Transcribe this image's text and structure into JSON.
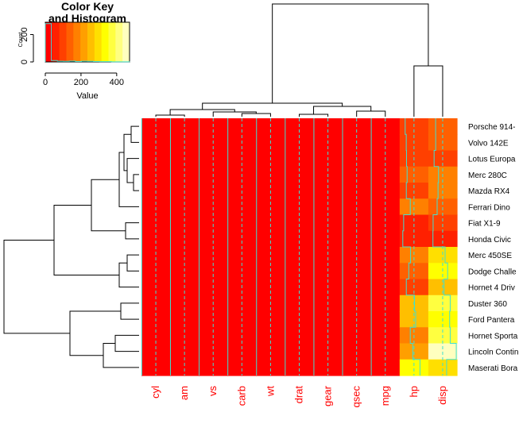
{
  "chart_data": [
    {
      "type": "heatmap",
      "columns": [
        "cyl",
        "am",
        "vs",
        "carb",
        "wt",
        "drat",
        "gear",
        "qsec",
        "mpg",
        "hp",
        "disp"
      ],
      "column_label_color": "#ff0000",
      "rows": [
        "Porsche 914-",
        "Volvo 142E",
        "Lotus Europa",
        "Merc 280C",
        "Mazda RX4",
        "Ferrari Dino",
        "Fiat X1-9",
        "Honda Civic",
        "Merc 450SE",
        "Dodge Challe",
        "Hornet 4 Driv",
        "Duster 360",
        "Ford Pantera",
        "Hornet Sporta",
        "Lincoln Contin",
        "Maserati Bora"
      ],
      "hp": [
        91,
        109,
        113,
        123,
        110,
        175,
        66,
        52,
        180,
        150,
        110,
        245,
        264,
        175,
        215,
        335
      ],
      "disp": [
        120,
        121,
        95,
        168,
        160,
        145,
        79,
        76,
        276,
        318,
        258,
        360,
        351,
        360,
        460,
        301
      ],
      "other_columns_value": 5,
      "trace_color": "#40e0d0",
      "dendrograms": [
        "row",
        "column"
      ]
    },
    {
      "type": "bar",
      "title": "Color Key\nand Histogram",
      "title_lines": [
        "Color Key",
        "and Histogram"
      ],
      "xlabel": "Value",
      "ylabel": "Count",
      "xlim": [
        0,
        472
      ],
      "xticks": [
        0,
        200,
        400
      ],
      "ylim": [
        0,
        290
      ],
      "yticks": [
        0,
        200
      ],
      "bin_counts": [
        280,
        10,
        5,
        4,
        6,
        3,
        5,
        4,
        3,
        2,
        2,
        1,
        1,
        1
      ],
      "color_scale": [
        "#ff0000",
        "#ff2000",
        "#ff4000",
        "#ff6000",
        "#ff8000",
        "#ff9f00",
        "#ffbf00",
        "#ffdf00",
        "#ffff00",
        "#ffff40",
        "#ffff80",
        "#ffffbf"
      ]
    }
  ]
}
